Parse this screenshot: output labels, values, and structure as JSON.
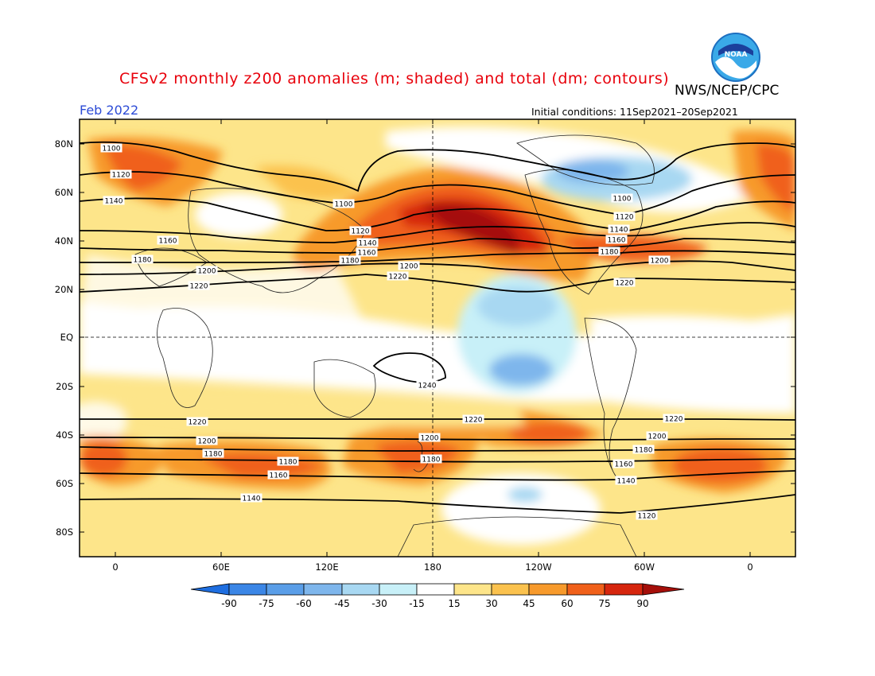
{
  "title": "CFSv2 monthly z200 anomalies (m; shaded) and total (dm; contours)",
  "org": "NWS/NCEP/CPC",
  "logo_text": "NOAA",
  "month": "Feb 2022",
  "initial_conditions": "Initial conditions: 11Sep2021–20Sep2021",
  "lat_labels": [
    "80N",
    "60N",
    "40N",
    "20N",
    "EQ",
    "20S",
    "40S",
    "60S",
    "80S"
  ],
  "lon_labels": [
    "0",
    "60E",
    "120E",
    "180",
    "120W",
    "60W",
    "0"
  ],
  "colorbar": {
    "labels": [
      "-90",
      "-75",
      "-60",
      "-45",
      "-30",
      "-15",
      "15",
      "30",
      "45",
      "60",
      "75",
      "90"
    ],
    "colors": [
      "#1e6ee0",
      "#3b86e6",
      "#5a9ee8",
      "#7eb6ec",
      "#a8d8f2",
      "#c8f0f8",
      "#ffffff",
      "#fde58a",
      "#fbc24e",
      "#f79a2c",
      "#f0601a",
      "#d6260e",
      "#a50f0a"
    ]
  },
  "chart_data": {
    "type": "map",
    "anomaly_units": "m",
    "contour_units": "dm",
    "contour_labels": [
      "1100",
      "1120",
      "1140",
      "1160",
      "1180",
      "1200",
      "1220",
      "1240"
    ],
    "contour_levels": [
      1100,
      1120,
      1140,
      1160,
      1180,
      1200,
      1220,
      1240
    ]
  }
}
